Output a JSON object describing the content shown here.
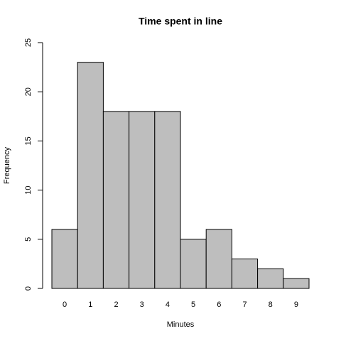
{
  "chart_data": {
    "type": "bar",
    "title": "Time spent in line",
    "xlabel": "Minutes",
    "ylabel": "Frequency",
    "categories": [
      "0",
      "1",
      "2",
      "3",
      "4",
      "5",
      "6",
      "7",
      "8",
      "9"
    ],
    "values": [
      6,
      23,
      18,
      18,
      18,
      5,
      6,
      3,
      2,
      1
    ],
    "color": "#bebebe",
    "ylim": [
      0,
      25
    ],
    "yticks": [
      0,
      5,
      10,
      15,
      20,
      25
    ]
  }
}
